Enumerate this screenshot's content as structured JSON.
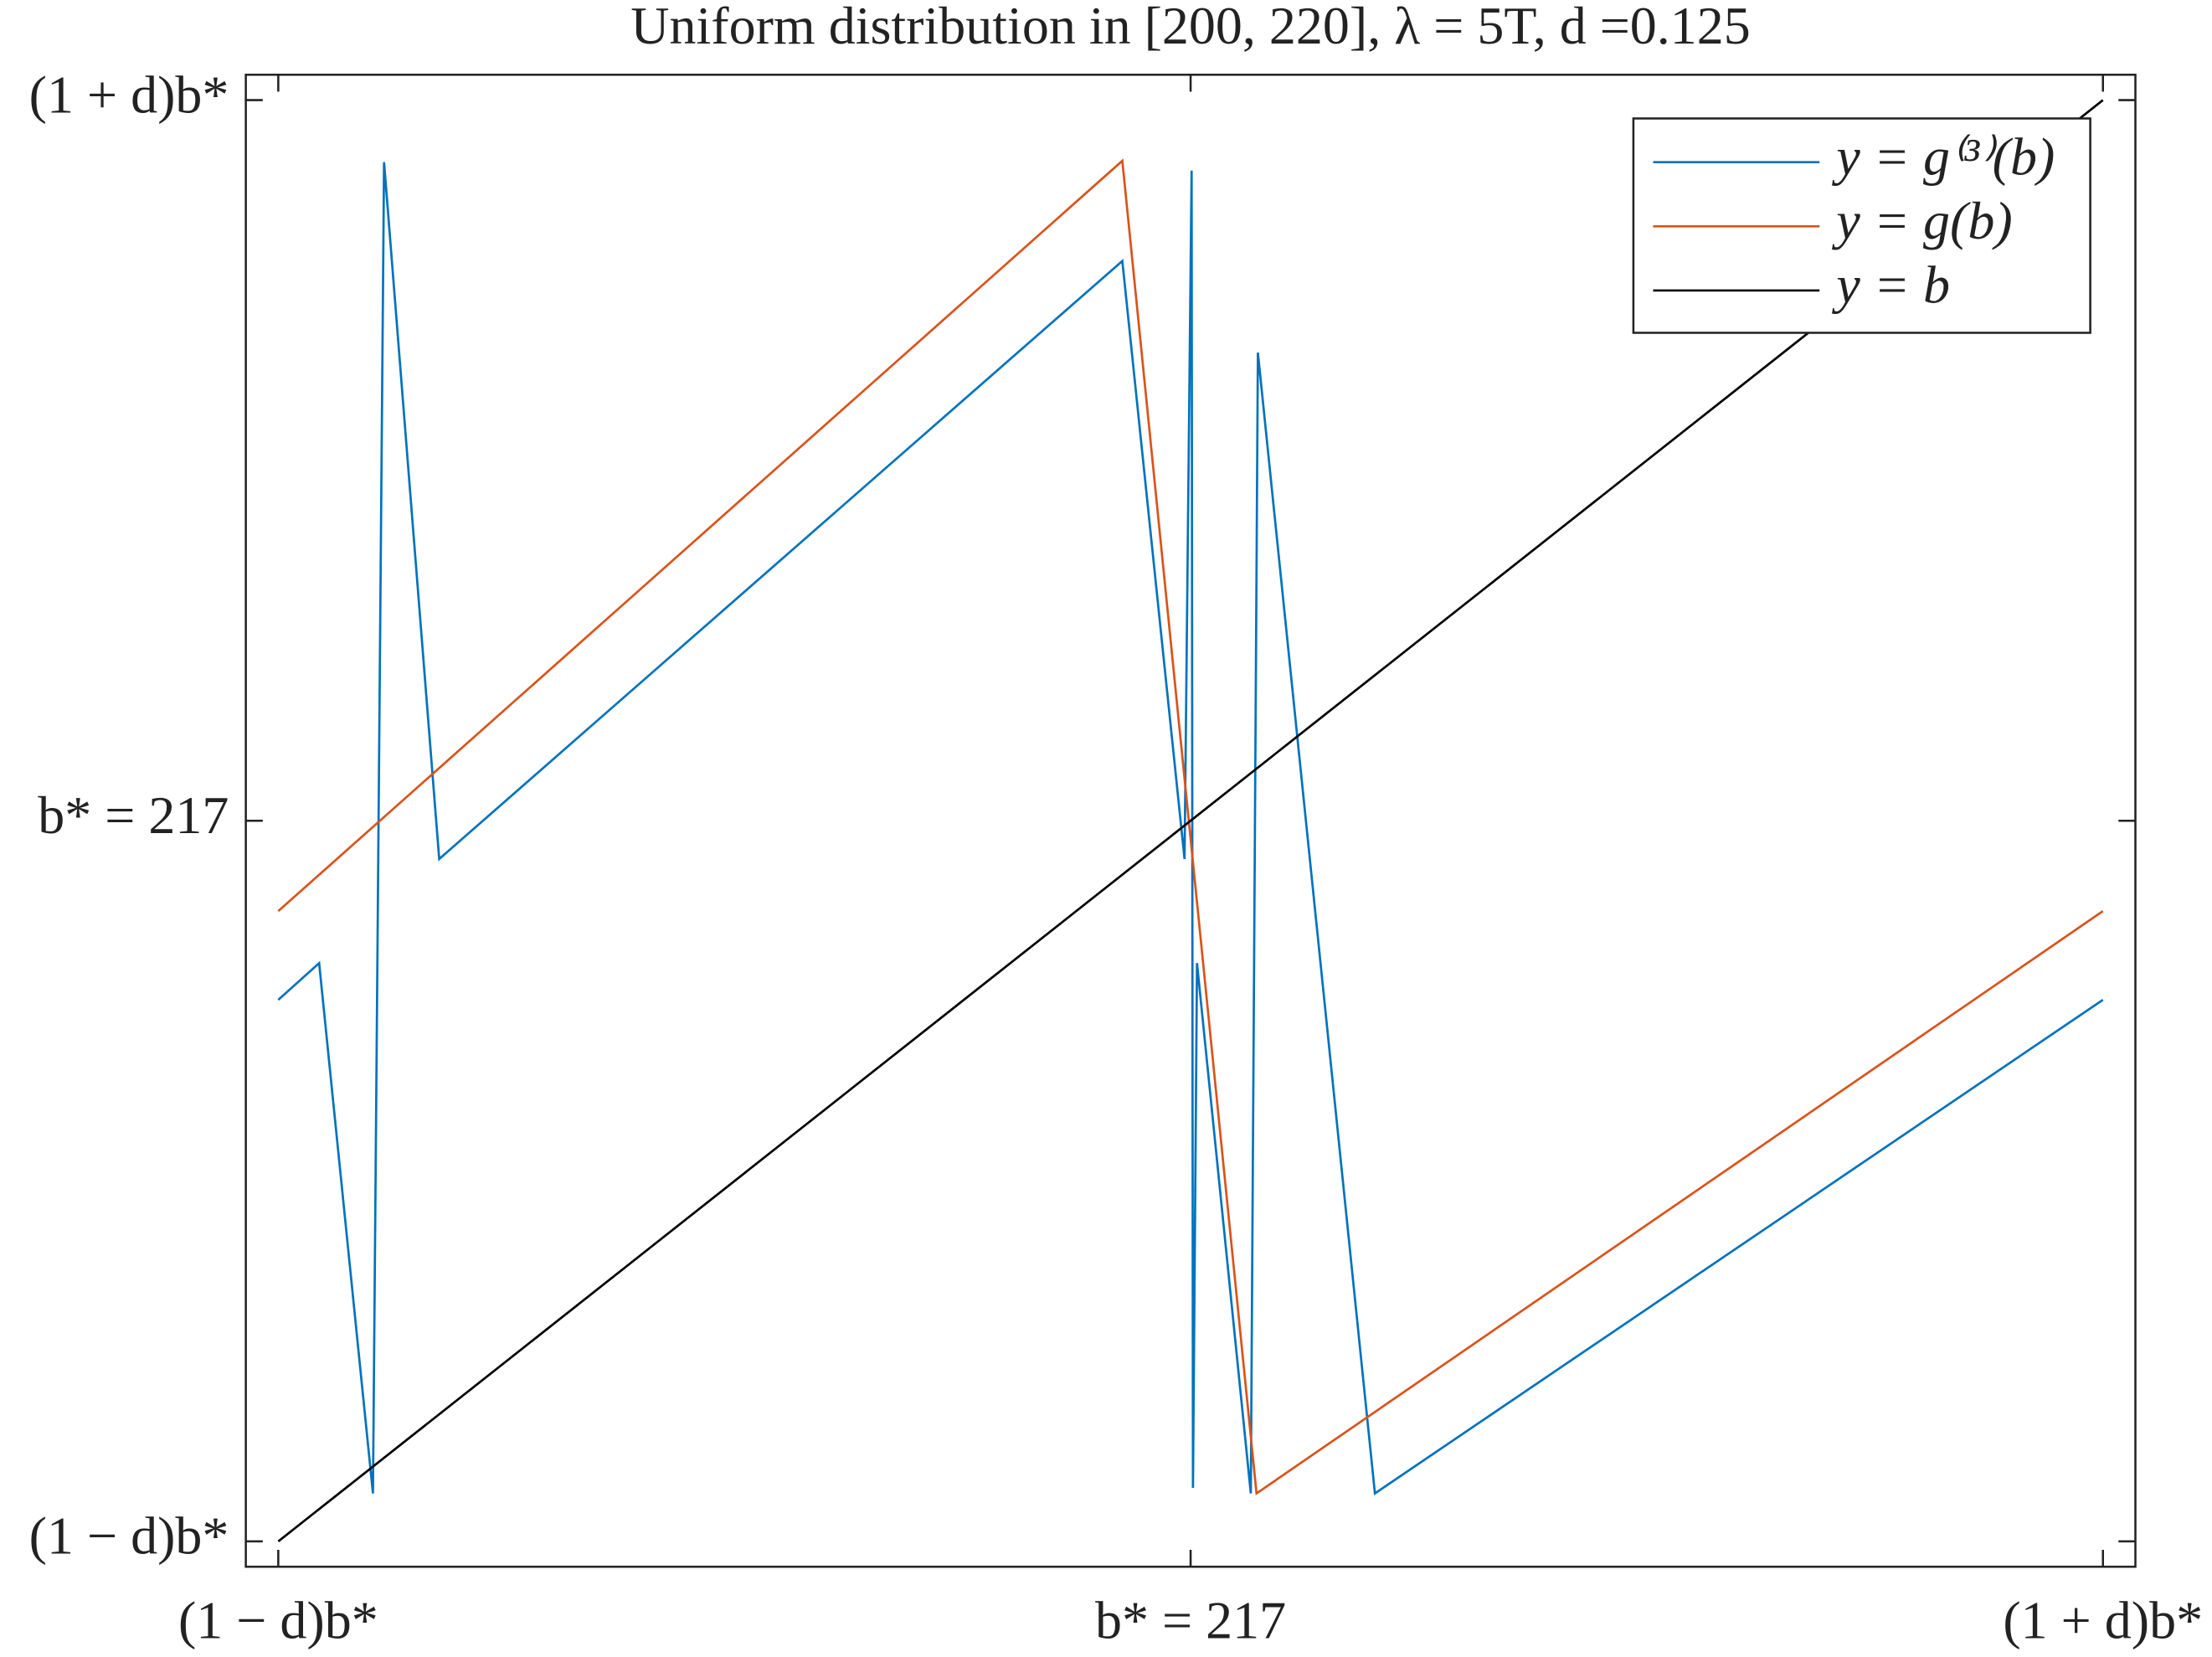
{
  "chart_data": {
    "type": "line",
    "title": "Uniform distribution in [200, 220], λ = 5T, d =0.125",
    "xlim": [
      188.91,
      245.09
    ],
    "ylim": [
      188.92,
      245.08
    ],
    "xticks": [
      {
        "value": 189.875,
        "label": "(1 − d)b*"
      },
      {
        "value": 217,
        "label": "b* = 217"
      },
      {
        "value": 244.125,
        "label": "(1 + d)b*"
      }
    ],
    "yticks": [
      {
        "value": 189.875,
        "label": "(1 − d)b*"
      },
      {
        "value": 217,
        "label": "b* = 217"
      },
      {
        "value": 244.125,
        "label": "(1 + d)b*"
      }
    ],
    "legend": "northeast",
    "series": [
      {
        "name": "y = g⁽³⁾(b)",
        "color": "#0072bd",
        "x": [
          189.875,
          191.09,
          192.69,
          193.02,
          194.66,
          214.97,
          216.82,
          217.03,
          217.07,
          217.19,
          218.79,
          219.0,
          222.48,
          244.125
        ],
        "values": [
          210.26,
          211.64,
          191.68,
          241.79,
          215.56,
          238.07,
          215.56,
          241.47,
          191.89,
          211.64,
          191.68,
          234.62,
          191.68,
          210.26
        ]
      },
      {
        "name": "y = g(b)",
        "color": "#d95319",
        "x": [
          189.875,
          214.97,
          218.96,
          244.125
        ],
        "values": [
          213.6,
          241.84,
          191.68,
          213.6
        ]
      },
      {
        "name": "y = b",
        "color": "#000000",
        "x": [
          189.875,
          244.125
        ],
        "values": [
          189.875,
          244.125
        ]
      }
    ]
  }
}
